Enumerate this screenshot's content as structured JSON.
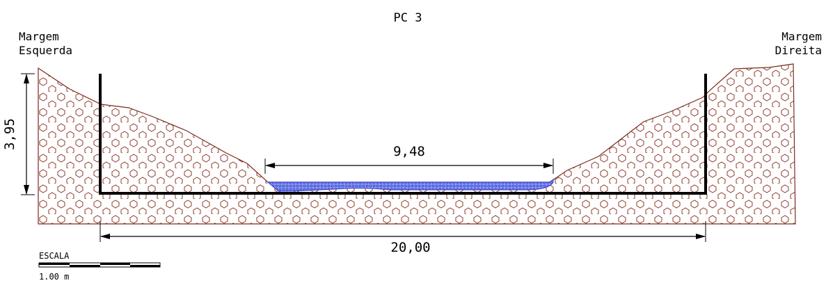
{
  "title": "PC 3",
  "left_bank": {
    "line1": "Margem",
    "line2": "Esquerda"
  },
  "right_bank": {
    "line1": "Margem",
    "line2": "Direita"
  },
  "dimensions": {
    "height": "3,95",
    "water_width": "9,48",
    "total_width": "20,00"
  },
  "scale": {
    "label": "ESCALA",
    "value": "1.00 m"
  },
  "colors": {
    "soil_outline": "#7a2a1c",
    "soil_hatch": "#8b3a2a",
    "water_fill": "#6a78e8",
    "water_edge": "#2a3acc",
    "structure": "#000000"
  }
}
